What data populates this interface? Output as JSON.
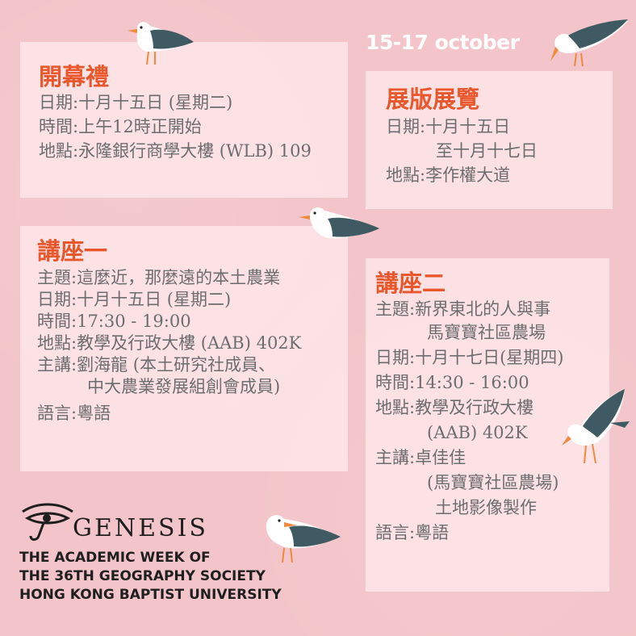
{
  "date_range": "15-17 october",
  "opening": {
    "title": "開幕禮",
    "rows": [
      {
        "label": "日期: ",
        "value": "十月十五日 (星期二)"
      },
      {
        "label": "時間: ",
        "value": "上午12時正開始"
      },
      {
        "label": "地點: ",
        "value": "永隆銀行商學大樓 (WLB) 109"
      }
    ]
  },
  "exhibition": {
    "title": "展版展覽",
    "date_label": "日期: ",
    "date_line1": "十月十五日",
    "date_line2": "至十月十七日",
    "venue_label": "地點: ",
    "venue": "李作權大道"
  },
  "talk1": {
    "title": "講座一",
    "topic_label": "主題: ",
    "topic": "這麼近，那麼遠的本土農業",
    "date_label": "日期: ",
    "date": "十月十五日 (星期二)",
    "time_label": "時間: ",
    "time": "17:30 - 19:00",
    "venue_label": "地點: ",
    "venue": "教學及行政大樓 (AAB) 402K",
    "speaker_label": "主講: ",
    "speaker_line1": "劉海龍 (本土研究社成員、",
    "speaker_line2": "中大農業發展組創會成員)",
    "lang_label": "語言: ",
    "lang": "粵語"
  },
  "talk2": {
    "title": "講座二",
    "topic_label": "主題: ",
    "topic_line1": "新界東北的人與事",
    "topic_line2": "馬寶寶社區農場",
    "date_label": "日期: ",
    "date": "十月十七日(星期四)",
    "time_label": "時間: ",
    "time": "14:30 - 16:00",
    "venue_label": "地點: ",
    "venue_line1": "教學及行政大樓",
    "venue_line2": "(AAB) 402K",
    "speaker_label": "主講: ",
    "speaker_line1": "卓佳佳",
    "speaker_line2": "(馬寶寶社區農場)",
    "speaker_line3": "土地影像製作",
    "lang_label": "語言: ",
    "lang": "粵語"
  },
  "org": {
    "logo": "GENESIS",
    "line1": "THE ACADEMIC WEEK OF",
    "line2": "THE 36TH GEOGRAPHY SOCIETY",
    "line3": "HONG KONG BAPTIST  UNIVERSITY"
  },
  "icons": [
    "seagull-icon",
    "eye-of-horus-icon"
  ],
  "colors": {
    "background": "#f3c4c9",
    "heading": "#e8582c",
    "text": "#6d6d70"
  }
}
